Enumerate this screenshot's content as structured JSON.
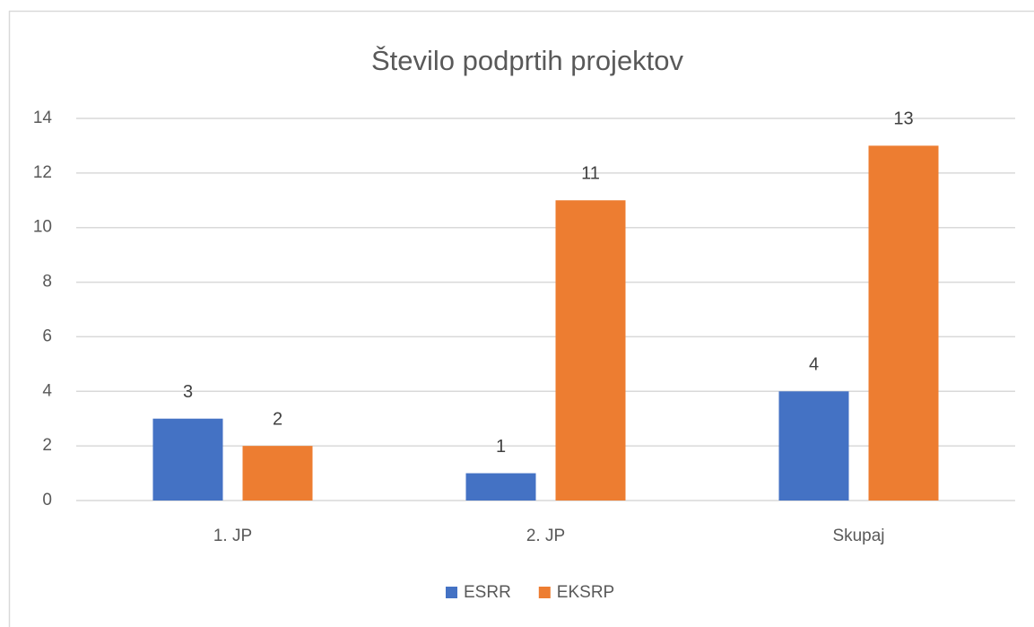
{
  "chart_data": {
    "type": "bar",
    "title": "Število podprtih projektov",
    "categories": [
      "1. JP",
      "2. JP",
      "Skupaj"
    ],
    "series": [
      {
        "name": "ESRR",
        "color": "#4472c4",
        "values": [
          3,
          1,
          4
        ]
      },
      {
        "name": "EKSRP",
        "color": "#ed7d31",
        "values": [
          2,
          11,
          13
        ]
      }
    ],
    "ylim": [
      0,
      14
    ],
    "yticks": [
      0,
      2,
      4,
      6,
      8,
      10,
      12,
      14
    ],
    "grid": true,
    "legend": "bottom"
  }
}
